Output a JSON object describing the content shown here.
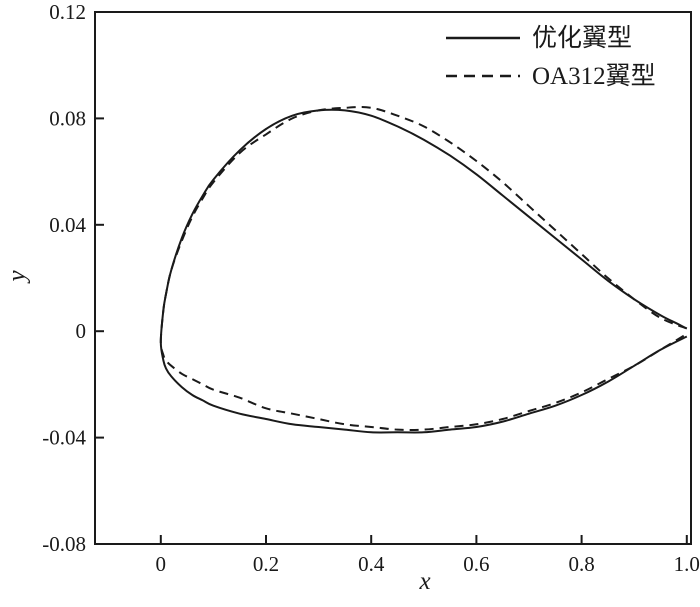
{
  "figure": {
    "background": "#ffffff",
    "line_color": "#1a1a1a"
  },
  "chart_data": {
    "type": "line",
    "title": "",
    "xlabel": "x",
    "ylabel": "y",
    "xlim": [
      -0.125,
      1.008
    ],
    "ylim": [
      -0.08,
      0.12
    ],
    "grid": false,
    "legend_position": "top-right",
    "x_ticks": [
      {
        "value": 0,
        "label": "0"
      },
      {
        "value": 0.2,
        "label": "0.2"
      },
      {
        "value": 0.4,
        "label": "0.4"
      },
      {
        "value": 0.6,
        "label": "0.6"
      },
      {
        "value": 0.8,
        "label": "0.8"
      },
      {
        "value": 1.0,
        "label": "1.0"
      }
    ],
    "y_ticks": [
      {
        "value": -0.08,
        "label": "-0.08"
      },
      {
        "value": -0.04,
        "label": "-0.04"
      },
      {
        "value": 0,
        "label": "0"
      },
      {
        "value": 0.04,
        "label": "0.04"
      },
      {
        "value": 0.08,
        "label": "0.08"
      },
      {
        "value": 0.12,
        "label": "0.12"
      }
    ],
    "series": [
      {
        "key": "optimized-airfoil",
        "name": "优化翼型",
        "style": "solid",
        "color": "#1a1a1a",
        "upper": [
          [
            0.0,
            -0.004
          ],
          [
            0.005,
            0.008
          ],
          [
            0.01,
            0.014
          ],
          [
            0.02,
            0.023
          ],
          [
            0.04,
            0.035
          ],
          [
            0.06,
            0.044
          ],
          [
            0.08,
            0.051
          ],
          [
            0.1,
            0.057
          ],
          [
            0.15,
            0.068
          ],
          [
            0.2,
            0.076
          ],
          [
            0.25,
            0.081
          ],
          [
            0.3,
            0.083
          ],
          [
            0.35,
            0.083
          ],
          [
            0.4,
            0.081
          ],
          [
            0.45,
            0.077
          ],
          [
            0.5,
            0.072
          ],
          [
            0.55,
            0.066
          ],
          [
            0.6,
            0.059
          ],
          [
            0.65,
            0.051
          ],
          [
            0.7,
            0.043
          ],
          [
            0.75,
            0.035
          ],
          [
            0.8,
            0.027
          ],
          [
            0.85,
            0.019
          ],
          [
            0.9,
            0.012
          ],
          [
            0.95,
            0.006
          ],
          [
            0.98,
            0.003
          ],
          [
            1.0,
            0.001
          ]
        ],
        "lower": [
          [
            0.0,
            -0.004
          ],
          [
            0.005,
            -0.011
          ],
          [
            0.01,
            -0.014
          ],
          [
            0.02,
            -0.017
          ],
          [
            0.04,
            -0.021
          ],
          [
            0.06,
            -0.024
          ],
          [
            0.08,
            -0.026
          ],
          [
            0.1,
            -0.028
          ],
          [
            0.15,
            -0.031
          ],
          [
            0.2,
            -0.033
          ],
          [
            0.25,
            -0.035
          ],
          [
            0.3,
            -0.036
          ],
          [
            0.35,
            -0.037
          ],
          [
            0.4,
            -0.038
          ],
          [
            0.45,
            -0.038
          ],
          [
            0.5,
            -0.038
          ],
          [
            0.55,
            -0.037
          ],
          [
            0.6,
            -0.036
          ],
          [
            0.65,
            -0.034
          ],
          [
            0.7,
            -0.031
          ],
          [
            0.75,
            -0.028
          ],
          [
            0.8,
            -0.024
          ],
          [
            0.85,
            -0.019
          ],
          [
            0.9,
            -0.013
          ],
          [
            0.95,
            -0.007
          ],
          [
            1.0,
            -0.002
          ]
        ]
      },
      {
        "key": "oa312-airfoil",
        "name": "OA312翼型",
        "style": "dashed",
        "color": "#1a1a1a",
        "upper": [
          [
            0.0,
            -0.004
          ],
          [
            0.005,
            0.008
          ],
          [
            0.01,
            0.014
          ],
          [
            0.02,
            0.023
          ],
          [
            0.04,
            0.034
          ],
          [
            0.06,
            0.043
          ],
          [
            0.08,
            0.05
          ],
          [
            0.1,
            0.056
          ],
          [
            0.15,
            0.067
          ],
          [
            0.2,
            0.074
          ],
          [
            0.25,
            0.08
          ],
          [
            0.3,
            0.083
          ],
          [
            0.35,
            0.084
          ],
          [
            0.4,
            0.084
          ],
          [
            0.45,
            0.081
          ],
          [
            0.5,
            0.077
          ],
          [
            0.55,
            0.071
          ],
          [
            0.6,
            0.064
          ],
          [
            0.65,
            0.056
          ],
          [
            0.7,
            0.047
          ],
          [
            0.75,
            0.038
          ],
          [
            0.8,
            0.029
          ],
          [
            0.85,
            0.02
          ],
          [
            0.9,
            0.012
          ],
          [
            0.95,
            0.005
          ],
          [
            1.0,
            0.001
          ]
        ],
        "lower": [
          [
            0.0,
            -0.004
          ],
          [
            0.005,
            -0.009
          ],
          [
            0.01,
            -0.011
          ],
          [
            0.02,
            -0.013
          ],
          [
            0.04,
            -0.016
          ],
          [
            0.06,
            -0.018
          ],
          [
            0.08,
            -0.02
          ],
          [
            0.1,
            -0.022
          ],
          [
            0.15,
            -0.025
          ],
          [
            0.2,
            -0.029
          ],
          [
            0.25,
            -0.031
          ],
          [
            0.3,
            -0.033
          ],
          [
            0.35,
            -0.035
          ],
          [
            0.4,
            -0.036
          ],
          [
            0.45,
            -0.037
          ],
          [
            0.5,
            -0.037
          ],
          [
            0.55,
            -0.036
          ],
          [
            0.6,
            -0.035
          ],
          [
            0.65,
            -0.033
          ],
          [
            0.7,
            -0.03
          ],
          [
            0.75,
            -0.027
          ],
          [
            0.8,
            -0.023
          ],
          [
            0.85,
            -0.018
          ],
          [
            0.9,
            -0.013
          ],
          [
            0.95,
            -0.007
          ],
          [
            1.0,
            -0.001
          ]
        ]
      }
    ]
  }
}
